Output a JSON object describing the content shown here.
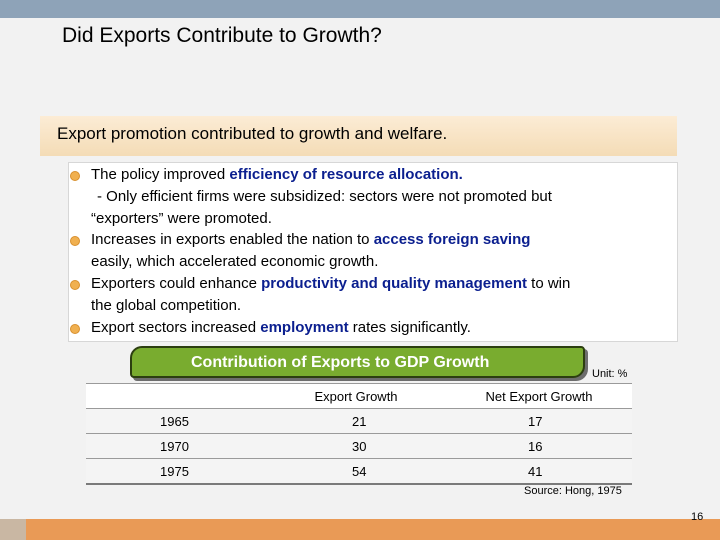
{
  "title": "Did Exports Contribute to Growth?",
  "subheading": "Export promotion contributed to growth and welfare.",
  "bullets": {
    "b1_pre": "The policy improved ",
    "b1_emph": "efficiency of resource allocation.",
    "b1_line2": "- Only efficient firms were subsidized: sectors were  not promoted  but",
    "b1_line3": "“exporters” were promoted.",
    "b2_pre": "Increases in exports enabled the nation to ",
    "b2_emph": "access foreign saving",
    "b2_line2": "easily, which accelerated economic growth.",
    "b3_pre": "Exporters could enhance ",
    "b3_emph": "productivity and quality management",
    "b3_post": " to win",
    "b3_line2": "the global competition.",
    "b4_pre": "Export sectors increased ",
    "b4_emph": "employment",
    "b4_post": " rates significantly."
  },
  "table_title": "Contribution of Exports to GDP Growth",
  "unit": "Unit: %",
  "table": {
    "headers": [
      "",
      "Export Growth",
      "Net Export Growth"
    ],
    "rows": [
      [
        "1965",
        "21",
        "17"
      ],
      [
        "1970",
        "30",
        "16"
      ],
      [
        "1975",
        "54",
        "41"
      ]
    ]
  },
  "source": "Source: Hong, 1975",
  "page_number": "16",
  "colors": {
    "top_bar": "#8ea3b8",
    "bottom_bar": "#e99a56",
    "emphasis_text": "#0b1f8f",
    "table_header_fill": "#79ac2f",
    "bullet": "#f0b050"
  }
}
